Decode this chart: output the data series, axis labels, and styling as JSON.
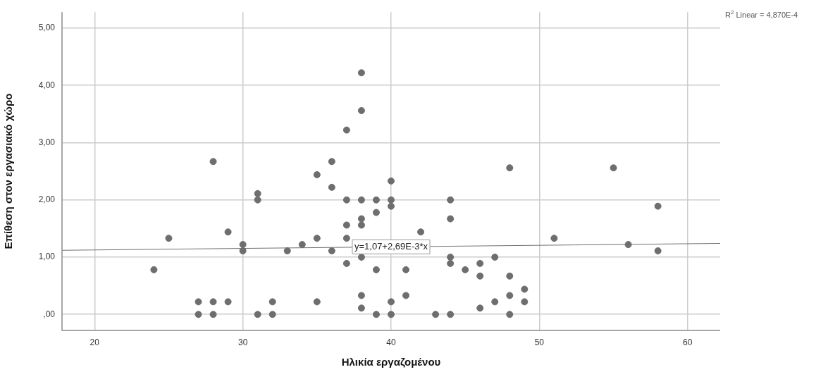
{
  "chart_data": {
    "type": "scatter",
    "xlabel": "Ηλικία εργαζομένου",
    "ylabel": "Επίθεση στον εργασιακό χώρο",
    "xlim": [
      17.8,
      62.2
    ],
    "ylim": [
      -0.28,
      5.28
    ],
    "xticks": [
      20,
      30,
      40,
      50,
      60
    ],
    "yticks": [
      {
        "value": 0,
        "label": ",00"
      },
      {
        "value": 1,
        "label": "1,00"
      },
      {
        "value": 2,
        "label": "2,00"
      },
      {
        "value": 3,
        "label": "3,00"
      },
      {
        "value": 4,
        "label": "4,00"
      },
      {
        "value": 5,
        "label": "5,00"
      }
    ],
    "grid": true,
    "legend": false,
    "series": [
      {
        "type": "scatter",
        "marker": "circle",
        "color": "#6e6e6e",
        "x": [
          24,
          25,
          27,
          27,
          28,
          28,
          28,
          29,
          29,
          30,
          30,
          31,
          31,
          31,
          32,
          32,
          33,
          34,
          35,
          35,
          35,
          36,
          36,
          36,
          37,
          37,
          37,
          37,
          37,
          38,
          38,
          38,
          38,
          38,
          38,
          38,
          38,
          39,
          39,
          39,
          39,
          40,
          40,
          40,
          40,
          40,
          41,
          41,
          42,
          43,
          44,
          44,
          44,
          44,
          44,
          45,
          46,
          46,
          46,
          47,
          47,
          48,
          48,
          48,
          48,
          49,
          49,
          51,
          55,
          56,
          58,
          58
        ],
        "values": [
          0.78,
          1.33,
          0.22,
          0,
          2.67,
          0.22,
          0,
          1.44,
          0.22,
          1.22,
          1.11,
          2.11,
          2.0,
          0,
          0.22,
          0,
          1.11,
          1.22,
          2.44,
          1.33,
          0.22,
          2.67,
          2.22,
          1.11,
          3.22,
          2.0,
          1.56,
          1.33,
          0.89,
          4.22,
          3.56,
          2.0,
          1.67,
          1.56,
          1.0,
          0.33,
          0.11,
          2.0,
          1.78,
          0.78,
          0,
          2.33,
          2.0,
          1.89,
          0.22,
          0,
          0.78,
          0.33,
          1.44,
          0,
          2.0,
          1.67,
          1.0,
          0.89,
          0,
          0.78,
          0.89,
          0.67,
          0.11,
          1.0,
          0.22,
          2.56,
          0.67,
          0.33,
          0,
          0.44,
          0.22,
          1.33,
          2.56,
          1.22,
          1.89,
          1.11
        ]
      },
      {
        "type": "line",
        "color": "#707070",
        "x": [
          17.8,
          62.2
        ],
        "values": [
          1.12,
          1.24
        ]
      }
    ],
    "annotations": [
      {
        "text": "y=1,07+2,69E-3*x",
        "x": 40,
        "y": 1.18
      },
      "R$^{2}$ Linear = 4,870E-4"
    ]
  }
}
